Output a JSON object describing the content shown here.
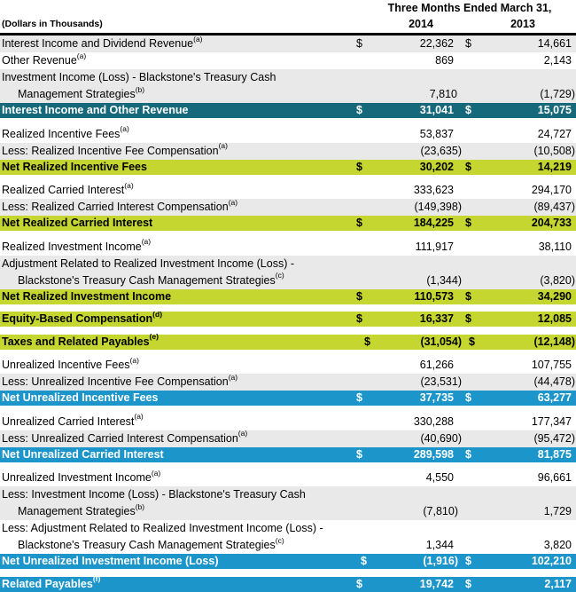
{
  "colors": {
    "teal": "#16697A",
    "green": "#C4D62F",
    "blue": "#1B95CA",
    "stripe": "#E9E9E9"
  },
  "table": {
    "units_label": "(Dollars in Thousands)",
    "period_header": "Three Months Ended March 31,",
    "col_2014": "2014",
    "col_2013": "2013",
    "rows": [
      {
        "variant": "gray",
        "label": "Interest Income and Dividend Revenue",
        "sup": "(a)",
        "d14": "$",
        "v14": "22,362",
        "d13": "$",
        "v13": "14,661"
      },
      {
        "variant": "white",
        "label": "Other Revenue",
        "sup": "(a)",
        "v14": "869",
        "v13": "2,143"
      },
      {
        "variant": "gray",
        "label": "Investment Income (Loss) - Blackstone's Treasury Cash",
        "label2": "Management Strategies",
        "sup2": "(b)",
        "v14": "7,810",
        "v13": "(1,729)"
      },
      {
        "variant": "teal",
        "label": "Interest Income and Other Revenue",
        "d14": "$",
        "v14": "31,041",
        "d13": "$",
        "v13": "15,075"
      },
      {
        "variant": "gap"
      },
      {
        "variant": "white",
        "label": "Realized Incentive Fees",
        "sup": "(a)",
        "v14": "53,837",
        "v13": "24,727"
      },
      {
        "variant": "gray",
        "label": "Less: Realized Incentive Fee Compensation",
        "sup": "(a)",
        "v14": "(23,635)",
        "v13": "(10,508)"
      },
      {
        "variant": "green",
        "label": "Net Realized Incentive Fees",
        "d14": "$",
        "v14": "30,202",
        "d13": "$",
        "v13": "14,219"
      },
      {
        "variant": "gap"
      },
      {
        "variant": "white",
        "label": "Realized Carried Interest",
        "sup": "(a)",
        "v14": "333,623",
        "v13": "294,170"
      },
      {
        "variant": "gray",
        "label": "Less: Realized Carried Interest Compensation",
        "sup": "(a)",
        "v14": "(149,398)",
        "v13": "(89,437)"
      },
      {
        "variant": "green",
        "label": "Net Realized Carried Interest",
        "d14": "$",
        "v14": "184,225",
        "d13": "$",
        "v13": "204,733"
      },
      {
        "variant": "gap"
      },
      {
        "variant": "white",
        "label": "Realized Investment Income",
        "sup": "(a)",
        "v14": "111,917",
        "v13": "38,110"
      },
      {
        "variant": "gray",
        "label": "Adjustment Related to Realized Investment Income (Loss) -",
        "label2": "Blackstone's Treasury Cash Management Strategies",
        "sup2": "(c)",
        "v14": "(1,344)",
        "v13": "(3,820)"
      },
      {
        "variant": "green",
        "label": "Net Realized Investment Income",
        "d14": "$",
        "v14": "110,573",
        "d13": "$",
        "v13": "34,290"
      },
      {
        "variant": "gap"
      },
      {
        "variant": "green",
        "label": "Equity-Based Compensation",
        "sup": "(d)",
        "d14": "$",
        "v14": "16,337",
        "d13": "$",
        "v13": "12,085"
      },
      {
        "variant": "gap"
      },
      {
        "variant": "green",
        "label": "Taxes and Related Payables",
        "sup": "(e)",
        "d14": "$",
        "v14": "(31,054)",
        "d13": "$",
        "v13": "(12,148)"
      },
      {
        "variant": "gap"
      },
      {
        "variant": "white",
        "label": "Unrealized Incentive Fees",
        "sup": "(a)",
        "v14": "61,266",
        "v13": "107,755"
      },
      {
        "variant": "gray",
        "label": "Less: Unrealized Incentive Fee Compensation",
        "sup": "(a)",
        "v14": "(23,531)",
        "v13": "(44,478)"
      },
      {
        "variant": "blue",
        "label": "Net Unrealized Incentive Fees",
        "d14": "$",
        "v14": "37,735",
        "d13": "$",
        "v13": "63,277"
      },
      {
        "variant": "gap"
      },
      {
        "variant": "white",
        "label": "Unrealized Carried Interest",
        "sup": "(a)",
        "v14": "330,288",
        "v13": "177,347"
      },
      {
        "variant": "gray",
        "label": "Less: Unrealized Carried Interest Compensation",
        "sup": "(a)",
        "v14": "(40,690)",
        "v13": "(95,472)"
      },
      {
        "variant": "blue",
        "label": "Net Unrealized Carried Interest",
        "d14": "$",
        "v14": "289,598",
        "d13": "$",
        "v13": "81,875"
      },
      {
        "variant": "gap"
      },
      {
        "variant": "white",
        "label": "Unrealized Investment Income",
        "sup": "(a)",
        "v14": "4,550",
        "v13": "96,661"
      },
      {
        "variant": "gray",
        "label": "Less: Investment Income (Loss) - Blackstone's Treasury Cash",
        "label2": "Management Strategies",
        "sup2": "(b)",
        "v14": "(7,810)",
        "v13": "1,729"
      },
      {
        "variant": "white",
        "label": "Less: Adjustment Related to Realized Investment Income (Loss) -",
        "label2": "Blackstone's Treasury Cash Management Strategies",
        "sup2": "(c)",
        "v14": "1,344",
        "v13": "3,820"
      },
      {
        "variant": "blue",
        "label": "Net Unrealized Investment Income (Loss)",
        "d14": "$",
        "v14": "(1,916)",
        "d13": "$",
        "v13": "102,210"
      },
      {
        "variant": "gap"
      },
      {
        "variant": "blue",
        "label": "Related Payables",
        "sup": "(f)",
        "d14": "$",
        "v14": "19,742",
        "d13": "$",
        "v13": "2,117"
      }
    ]
  }
}
